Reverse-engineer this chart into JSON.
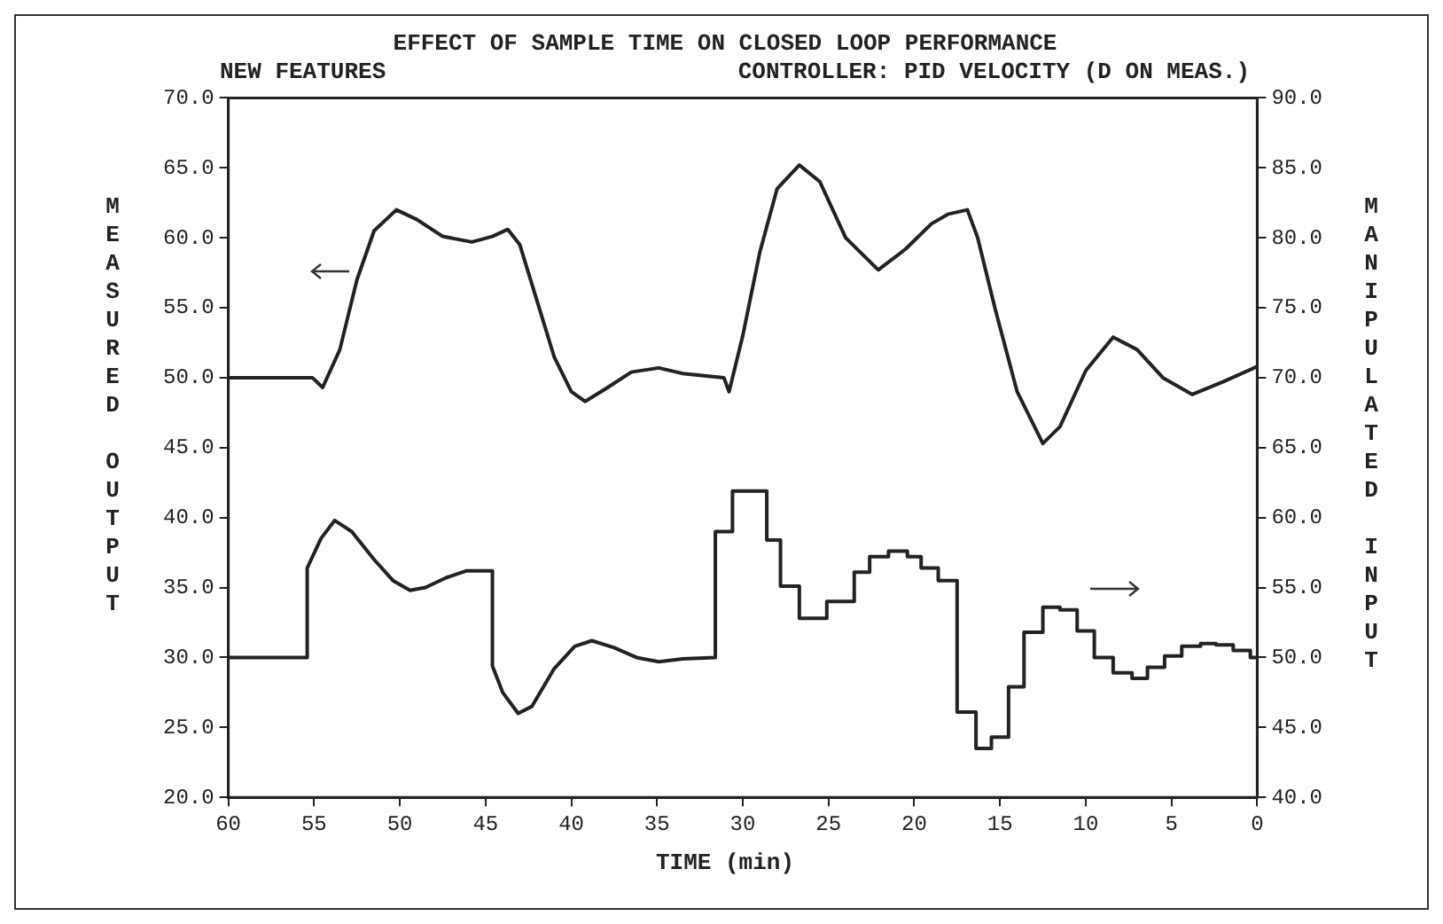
{
  "chart_data": {
    "type": "line",
    "title": "EFFECT OF SAMPLE TIME ON CLOSED LOOP PERFORMANCE",
    "subtitle": "NEW FEATURES",
    "annotations": [
      "CONTROLLER: PID VELOCITY (D ON MEAS.)"
    ],
    "xlabel": "TIME (min)",
    "ylabel": "MEASURED OUTPUT",
    "y2label": "MANIPULATED INPUT",
    "xlim": [
      60,
      0
    ],
    "xticks": [
      60,
      55,
      50,
      45,
      40,
      35,
      30,
      25,
      20,
      15,
      10,
      5,
      0
    ],
    "ylim": [
      20,
      70
    ],
    "yticks": [
      {
        "value": 20,
        "label": "20.0"
      },
      {
        "value": 25,
        "label": "25.0"
      },
      {
        "value": 30,
        "label": "30.0"
      },
      {
        "value": 35,
        "label": "35.0"
      },
      {
        "value": 40,
        "label": "40.0"
      },
      {
        "value": 45,
        "label": "45.0"
      },
      {
        "value": 50,
        "label": "50.0"
      },
      {
        "value": 55,
        "label": "55.0"
      },
      {
        "value": 60,
        "label": "60.0"
      },
      {
        "value": 65,
        "label": "65.0"
      },
      {
        "value": 70,
        "label": "70.0"
      }
    ],
    "y2lim": [
      40,
      90
    ],
    "y2ticks": [
      {
        "value": 40,
        "label": "40.0"
      },
      {
        "value": 45,
        "label": "45.0"
      },
      {
        "value": 50,
        "label": "50.0"
      },
      {
        "value": 55,
        "label": "55.0"
      },
      {
        "value": 60,
        "label": "60.0"
      },
      {
        "value": 65,
        "label": "65.0"
      },
      {
        "value": 70,
        "label": "70.0"
      },
      {
        "value": 75,
        "label": "75.0"
      },
      {
        "value": 80,
        "label": "80.0"
      },
      {
        "value": 85,
        "label": "85.0"
      },
      {
        "value": 90,
        "label": "90.0"
      }
    ],
    "grid": false,
    "legend": false,
    "marker": "none",
    "line_style": "solid",
    "series": [
      {
        "color": "#222222",
        "x": [
          60,
          56,
          55.1,
          54.5,
          53.5,
          52.5,
          51.5,
          50.2,
          49,
          47.5,
          45.8,
          44.6,
          43.7,
          43,
          42,
          41,
          40,
          39.2,
          38,
          36.5,
          34.9,
          33.5,
          31.1,
          30.8,
          30,
          29,
          28,
          26.7,
          25.5,
          24,
          22.1,
          20.5,
          19,
          18,
          16.9,
          16.3,
          15.3,
          14,
          12.5,
          11.5,
          10,
          8.4,
          7,
          5.5,
          3.8,
          2,
          0
        ],
        "values": [
          50,
          50,
          50,
          49.3,
          52,
          57,
          60.5,
          62,
          61.3,
          60.1,
          59.7,
          60.1,
          60.6,
          59.5,
          55.5,
          51.5,
          49,
          48.3,
          49.2,
          50.4,
          50.7,
          50.3,
          50,
          49,
          53,
          59,
          63.5,
          65.2,
          64,
          60,
          57.7,
          59.2,
          61,
          61.7,
          62,
          60,
          55,
          49,
          45.3,
          46.5,
          50.5,
          52.9,
          52,
          50,
          48.8,
          49.7,
          50.8
        ]
      },
      {
        "color": "#222222",
        "axis": "y2",
        "x": [
          60,
          55.4,
          55.4,
          54.6,
          53.8,
          52.8,
          51.5,
          50.4,
          49.4,
          48.5,
          47.3,
          46.1,
          44.6,
          44.6,
          44,
          43.1,
          42.3,
          41,
          39.8,
          38.8,
          37.5,
          36.2,
          34.9,
          33.5,
          31.6,
          31.6,
          30.6,
          30.6,
          28.6,
          28.6,
          27.8,
          27.8,
          26.7,
          26.7,
          25.1,
          25.1,
          23.5,
          23.5,
          22.6,
          22.6,
          21.5,
          21.5,
          20.4,
          20.4,
          19.6,
          19.6,
          18.6,
          18.6,
          17.5,
          17.5,
          16.4,
          16.4,
          15.5,
          15.5,
          14.5,
          14.5,
          13.6,
          13.6,
          12.5,
          12.5,
          11.5,
          11.5,
          10.5,
          10.5,
          9.5,
          9.5,
          8.4,
          8.4,
          7.3,
          7.3,
          6.4,
          6.4,
          5.4,
          5.4,
          4.4,
          4.4,
          3.3,
          3.3,
          2.4,
          2.4,
          1.4,
          1.4,
          0.4,
          0.4,
          0
        ],
        "values": [
          50,
          50,
          56.4,
          58.5,
          59.8,
          59,
          57,
          55.5,
          54.8,
          55,
          55.7,
          56.2,
          56.2,
          49.4,
          47.5,
          46,
          46.5,
          49.2,
          50.8,
          51.2,
          50.7,
          50,
          49.7,
          49.9,
          50,
          59,
          59,
          61.9,
          61.9,
          58.4,
          58.4,
          55.1,
          55.1,
          52.8,
          52.8,
          54,
          54,
          56.1,
          56.1,
          57.2,
          57.2,
          57.6,
          57.6,
          57.2,
          57.2,
          56.4,
          56.4,
          55.5,
          55.5,
          46.1,
          46.1,
          43.5,
          43.5,
          44.3,
          44.3,
          47.9,
          47.9,
          51.8,
          51.8,
          53.6,
          53.6,
          53.4,
          53.4,
          51.9,
          51.9,
          50,
          50,
          48.9,
          48.9,
          48.5,
          48.5,
          49.3,
          49.3,
          50.1,
          50.1,
          50.8,
          50.8,
          51,
          51,
          50.9,
          50.9,
          50.5,
          50.5,
          50,
          50
        ]
      }
    ]
  }
}
